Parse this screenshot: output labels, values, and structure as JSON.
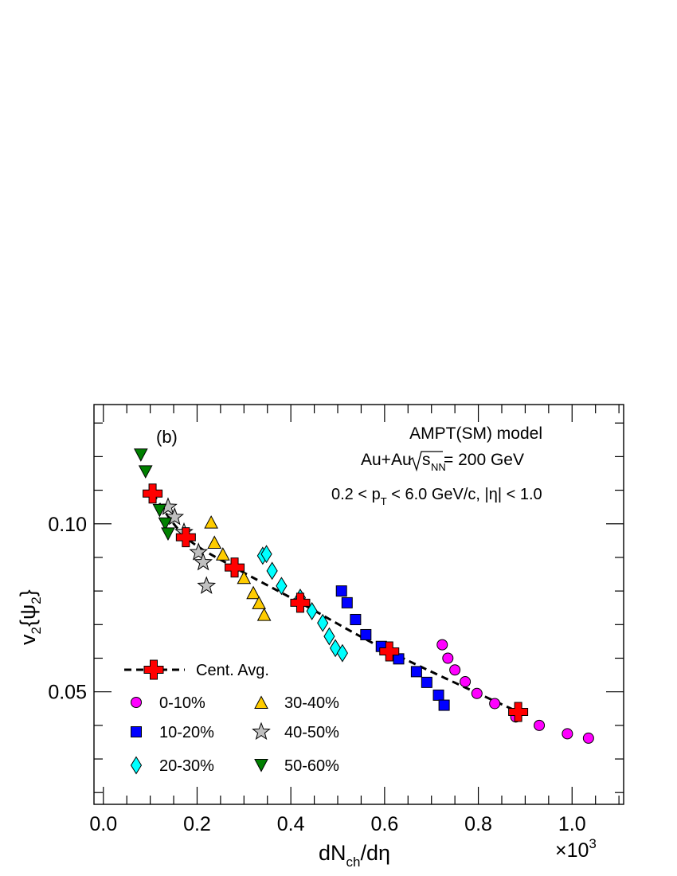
{
  "chart_data": {
    "type": "scatter",
    "panel_label": "(b)",
    "annotations": {
      "model": "AMPT(SM) model",
      "system_prefix": "Au+Au ",
      "sqrt_s_sub": "NN",
      "system_value": " = 200 GeV",
      "cuts_line": "0.2 < p_T < 6.0 GeV/c, |η| < 1.0"
    },
    "xlabel": "dN_ch/dη",
    "ylabel": "v_2{ψ_2}",
    "x_multiplier": "×10",
    "x_multiplier_exp": "3",
    "xlim": [
      -0.02,
      1.11
    ],
    "ylim": [
      0.0165,
      0.1355
    ],
    "x_ticks": [
      "0.0",
      "0.2",
      "0.4",
      "0.6",
      "0.8",
      "1.0"
    ],
    "x_tick_values": [
      0.0,
      0.2,
      0.4,
      0.6,
      0.8,
      1.0
    ],
    "y_ticks": [
      "0.05",
      "0.10"
    ],
    "y_tick_values": [
      0.05,
      0.1
    ],
    "legend_position": "bottom-left",
    "series": [
      {
        "name": "Cent. Avg.",
        "marker": "cross",
        "color": "#ff0000",
        "line": "dashed",
        "points": [
          [
            0.105,
            0.109
          ],
          [
            0.176,
            0.096
          ],
          [
            0.28,
            0.087
          ],
          [
            0.42,
            0.0765
          ],
          [
            0.61,
            0.062
          ],
          [
            0.885,
            0.044
          ]
        ]
      },
      {
        "name": "0-10%",
        "marker": "circle",
        "color": "#ff00ff",
        "points": [
          [
            0.723,
            0.064
          ],
          [
            0.735,
            0.06
          ],
          [
            0.75,
            0.0565
          ],
          [
            0.772,
            0.053
          ],
          [
            0.797,
            0.0495
          ],
          [
            0.835,
            0.0465
          ],
          [
            0.88,
            0.0425
          ],
          [
            0.93,
            0.04
          ],
          [
            0.99,
            0.0375
          ],
          [
            1.035,
            0.0362
          ]
        ]
      },
      {
        "name": "10-20%",
        "marker": "square",
        "color": "#0000ff",
        "points": [
          [
            0.508,
            0.08
          ],
          [
            0.52,
            0.0765
          ],
          [
            0.538,
            0.0715
          ],
          [
            0.56,
            0.067
          ],
          [
            0.593,
            0.0635
          ],
          [
            0.63,
            0.0598
          ],
          [
            0.668,
            0.056
          ],
          [
            0.69,
            0.0528
          ],
          [
            0.715,
            0.049
          ],
          [
            0.727,
            0.046
          ]
        ]
      },
      {
        "name": "20-30%",
        "marker": "diamond",
        "color": "#00ffff",
        "points": [
          [
            0.34,
            0.0905
          ],
          [
            0.348,
            0.091
          ],
          [
            0.36,
            0.086
          ],
          [
            0.38,
            0.0815
          ],
          [
            0.42,
            0.078
          ],
          [
            0.445,
            0.074
          ],
          [
            0.468,
            0.0705
          ],
          [
            0.482,
            0.0665
          ],
          [
            0.495,
            0.063
          ],
          [
            0.51,
            0.0615
          ]
        ]
      },
      {
        "name": "30-40%",
        "marker": "triangle-up",
        "color": "#ffcc00",
        "points": [
          [
            0.23,
            0.1005
          ],
          [
            0.237,
            0.0945
          ],
          [
            0.255,
            0.091
          ],
          [
            0.3,
            0.084
          ],
          [
            0.32,
            0.0795
          ],
          [
            0.332,
            0.0765
          ],
          [
            0.343,
            0.073
          ]
        ]
      },
      {
        "name": "40-50%",
        "marker": "star",
        "color": "#c0c0c0",
        "points": [
          [
            0.138,
            0.105
          ],
          [
            0.152,
            0.102
          ],
          [
            0.172,
            0.0975
          ],
          [
            0.203,
            0.0915
          ],
          [
            0.213,
            0.0885
          ],
          [
            0.22,
            0.0815
          ]
        ]
      },
      {
        "name": "50-60%",
        "marker": "triangle-down",
        "color": "#008000",
        "points": [
          [
            0.08,
            0.1205
          ],
          [
            0.09,
            0.1155
          ],
          [
            0.12,
            0.104
          ],
          [
            0.132,
            0.1
          ],
          [
            0.138,
            0.097
          ]
        ]
      }
    ]
  }
}
